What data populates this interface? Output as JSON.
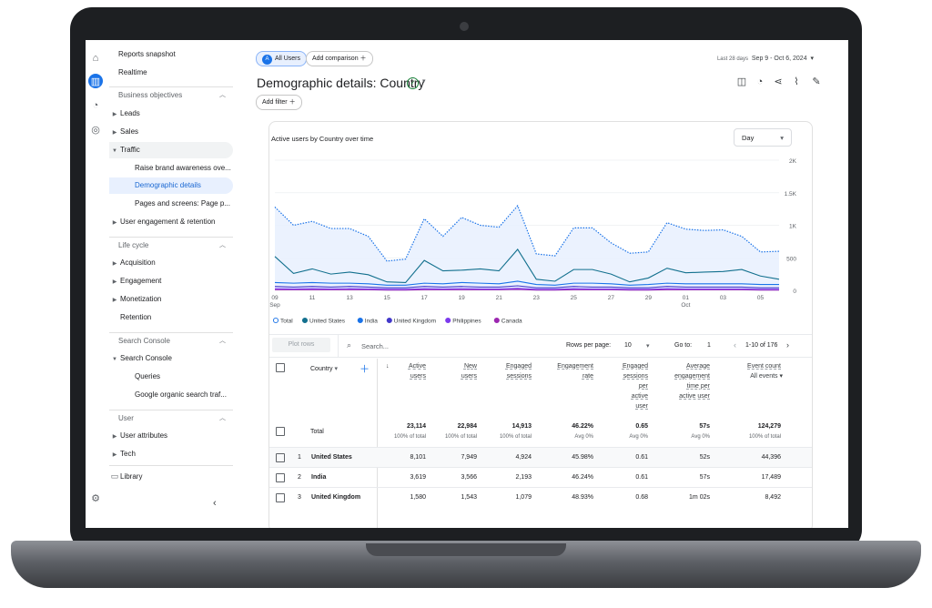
{
  "nav": {
    "reports_snapshot": "Reports snapshot",
    "realtime": "Realtime",
    "sec_business": "Business objectives",
    "leads": "Leads",
    "sales": "Sales",
    "traffic": "Traffic",
    "traffic_sub1": "Raise brand awareness ove...",
    "traffic_sub2": "Demographic details",
    "traffic_sub3": "Pages and screens: Page p...",
    "user_engagement": "User engagement & retention",
    "sec_lifecycle": "Life cycle",
    "acquisition": "Acquisition",
    "engagement": "Engagement",
    "monetization": "Monetization",
    "retention": "Retention",
    "sec_search": "Search Console",
    "search_console": "Search Console",
    "queries": "Queries",
    "google_organic": "Google organic search traf...",
    "sec_user": "User",
    "user_attributes": "User attributes",
    "tech": "Tech",
    "library": "Library"
  },
  "header": {
    "segment_letter": "A",
    "segment": "All Users",
    "add_comparison": "Add comparison",
    "date_caption": "Last 28 days",
    "date_range": "Sep 9 - Oct 6, 2024",
    "title": "Demographic details: Country",
    "add_filter": "Add filter"
  },
  "chart_data": {
    "type": "line",
    "title": "Active users by Country over time",
    "granularity": "Day",
    "ylim": [
      0,
      2000
    ],
    "y_ticks": [
      "2K",
      "1.5K",
      "1K",
      "500",
      "0"
    ],
    "x_ticks": [
      "09\nSep",
      "11",
      "13",
      "15",
      "17",
      "19",
      "21",
      "23",
      "25",
      "27",
      "29",
      "01\nOct",
      "03",
      "05"
    ],
    "x": [
      "Sep 9",
      "Sep 10",
      "Sep 11",
      "Sep 12",
      "Sep 13",
      "Sep 14",
      "Sep 15",
      "Sep 16",
      "Sep 17",
      "Sep 18",
      "Sep 19",
      "Sep 20",
      "Sep 21",
      "Sep 22",
      "Sep 23",
      "Sep 24",
      "Sep 25",
      "Sep 26",
      "Sep 27",
      "Sep 28",
      "Sep 29",
      "Sep 30",
      "Oct 1",
      "Oct 2",
      "Oct 3",
      "Oct 4",
      "Oct 5",
      "Oct 6"
    ],
    "series": [
      {
        "name": "Total",
        "color": "#1a73e8",
        "dashed": true,
        "values": [
          1280,
          1000,
          1060,
          950,
          950,
          830,
          450,
          480,
          1100,
          830,
          1120,
          1000,
          970,
          1300,
          560,
          530,
          960,
          960,
          730,
          570,
          590,
          1040,
          940,
          920,
          930,
          830,
          590,
          600
        ]
      },
      {
        "name": "United States",
        "color": "#12708e",
        "values": [
          520,
          260,
          330,
          250,
          280,
          240,
          130,
          120,
          460,
          300,
          310,
          330,
          300,
          630,
          170,
          140,
          320,
          320,
          250,
          130,
          190,
          340,
          270,
          280,
          290,
          320,
          220,
          170
        ]
      },
      {
        "name": "India",
        "color": "#1a73e8",
        "values": [
          120,
          110,
          120,
          110,
          110,
          100,
          80,
          80,
          110,
          100,
          120,
          110,
          100,
          140,
          90,
          80,
          110,
          110,
          100,
          80,
          90,
          110,
          100,
          100,
          100,
          100,
          90,
          90
        ]
      },
      {
        "name": "United Kingdom",
        "color": "#4338ca",
        "values": [
          60,
          50,
          60,
          50,
          60,
          50,
          40,
          40,
          60,
          50,
          60,
          50,
          50,
          70,
          40,
          40,
          60,
          50,
          50,
          40,
          40,
          60,
          50,
          50,
          50,
          50,
          40,
          40
        ]
      },
      {
        "name": "Philippines",
        "color": "#7c3aed",
        "values": [
          25,
          20,
          25,
          20,
          25,
          20,
          15,
          15,
          25,
          20,
          25,
          20,
          20,
          30,
          15,
          15,
          25,
          20,
          20,
          15,
          15,
          25,
          20,
          20,
          20,
          20,
          15,
          15
        ]
      },
      {
        "name": "Canada",
        "color": "#9c27b0",
        "values": [
          10,
          10,
          10,
          10,
          10,
          10,
          5,
          5,
          10,
          10,
          10,
          10,
          10,
          15,
          5,
          5,
          10,
          10,
          10,
          5,
          5,
          10,
          10,
          10,
          10,
          10,
          5,
          5
        ]
      }
    ]
  },
  "table": {
    "plot_rows": "Plot rows",
    "search_placeholder": "Search...",
    "rows_per_page_label": "Rows per page:",
    "rows_per_page": "10",
    "goto_label": "Go to:",
    "goto": "1",
    "page_range": "1-10 of 176",
    "dim_header": "Country",
    "headers": [
      [
        "Active",
        "users"
      ],
      [
        "New",
        "users"
      ],
      [
        "Engaged",
        "sessions"
      ],
      [
        "Engagement",
        "rate"
      ],
      [
        "Engaged",
        "sessions",
        "per",
        "active",
        "user"
      ],
      [
        "Average",
        "engagement",
        "time per",
        "active user"
      ],
      [
        "Event count",
        "All events"
      ]
    ],
    "total_label": "Total",
    "totals": [
      "23,114",
      "22,984",
      "14,913",
      "46.22%",
      "0.65",
      "57s",
      "124,279"
    ],
    "total_subs": [
      "100% of total",
      "100% of total",
      "100% of total",
      "Avg 0%",
      "Avg 0%",
      "Avg 0%",
      "100% of total"
    ],
    "rows": [
      {
        "rank": "1",
        "country": "United States",
        "values": [
          "8,101",
          "7,949",
          "4,924",
          "45.98%",
          "0.61",
          "52s",
          "44,396"
        ]
      },
      {
        "rank": "2",
        "country": "India",
        "values": [
          "3,619",
          "3,566",
          "2,193",
          "46.24%",
          "0.61",
          "57s",
          "17,489"
        ]
      },
      {
        "rank": "3",
        "country": "United Kingdom",
        "values": [
          "1,580",
          "1,543",
          "1,079",
          "48.93%",
          "0.68",
          "1m 02s",
          "8,492"
        ]
      }
    ]
  }
}
